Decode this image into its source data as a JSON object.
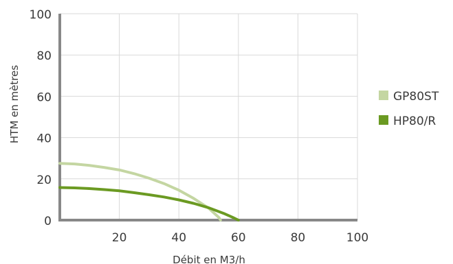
{
  "chart_data": {
    "type": "line",
    "title": "",
    "xlabel": "Débit en M3/h",
    "ylabel": "HTM en mètres",
    "xlim": [
      0,
      100
    ],
    "ylim": [
      0,
      100
    ],
    "x_ticks": [
      20,
      40,
      60,
      80,
      100
    ],
    "y_ticks": [
      0,
      20,
      40,
      60,
      80,
      100
    ],
    "grid": true,
    "legend_position": "right",
    "series": [
      {
        "name": "GP80ST",
        "color": "#c4d6a2",
        "x": [
          0,
          5,
          10,
          15,
          20,
          25,
          30,
          35,
          40,
          45,
          50,
          53.5,
          54
        ],
        "y": [
          27.5,
          27.2,
          26.5,
          25.5,
          24.3,
          22.5,
          20.3,
          17.7,
          14.5,
          10.5,
          5.8,
          1.2,
          0
        ]
      },
      {
        "name": "HP80/R",
        "color": "#6b9a22",
        "x": [
          0,
          5,
          10,
          15,
          20,
          25,
          30,
          35,
          40,
          45,
          50,
          55,
          58,
          60
        ],
        "y": [
          15.8,
          15.6,
          15.3,
          14.8,
          14.2,
          13.3,
          12.3,
          11.2,
          9.8,
          8.1,
          6.0,
          3.3,
          1.4,
          0
        ]
      }
    ]
  }
}
